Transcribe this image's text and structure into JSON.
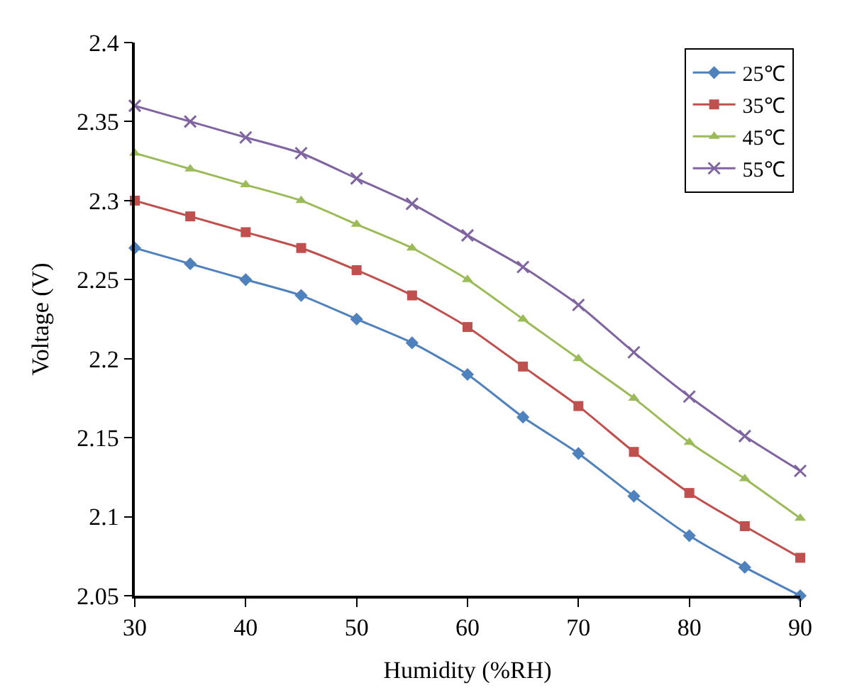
{
  "chart_data": {
    "type": "line",
    "xlabel": "Humidity (%RH)",
    "ylabel": "Voltage (V)",
    "x": [
      30,
      35,
      40,
      45,
      50,
      55,
      60,
      65,
      70,
      75,
      80,
      85,
      90
    ],
    "xlim": [
      30,
      90
    ],
    "xticks": [
      30,
      40,
      50,
      60,
      70,
      80,
      90
    ],
    "ylim": [
      2.05,
      2.4
    ],
    "yticks": [
      2.05,
      2.1,
      2.15,
      2.2,
      2.25,
      2.3,
      2.35,
      2.4
    ],
    "grid": false,
    "legend": "top right",
    "line_style": "solid",
    "series": [
      {
        "name": "25℃",
        "color": "#4f81bd",
        "marker": "diamond",
        "values": [
          2.27,
          2.26,
          2.25,
          2.24,
          2.225,
          2.21,
          2.19,
          2.163,
          2.14,
          2.113,
          2.088,
          2.068,
          2.05
        ]
      },
      {
        "name": "35℃",
        "color": "#c0504d",
        "marker": "square",
        "values": [
          2.3,
          2.29,
          2.28,
          2.27,
          2.256,
          2.24,
          2.22,
          2.195,
          2.17,
          2.141,
          2.115,
          2.094,
          2.074
        ]
      },
      {
        "name": "45℃",
        "color": "#9bbb59",
        "marker": "triangle",
        "values": [
          2.33,
          2.32,
          2.31,
          2.3,
          2.285,
          2.27,
          2.25,
          2.225,
          2.2,
          2.175,
          2.147,
          2.124,
          2.099
        ]
      },
      {
        "name": "55℃",
        "color": "#8064a2",
        "marker": "cross",
        "values": [
          2.36,
          2.35,
          2.34,
          2.33,
          2.314,
          2.298,
          2.278,
          2.258,
          2.234,
          2.204,
          2.176,
          2.151,
          2.129
        ]
      }
    ]
  }
}
